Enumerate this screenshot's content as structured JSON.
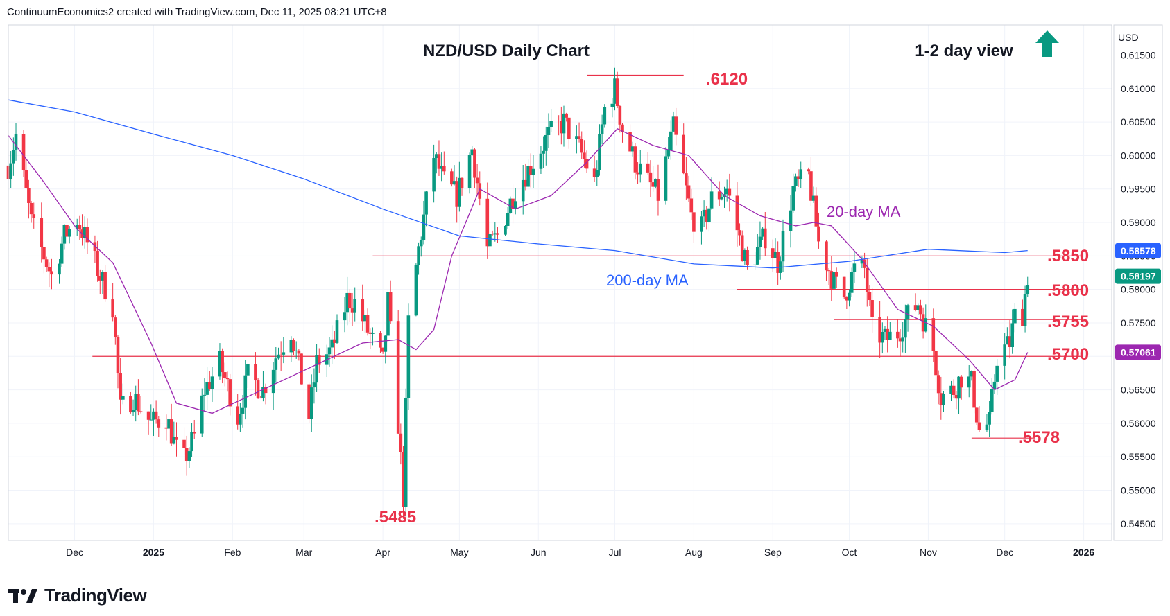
{
  "header": {
    "attribution": "ContinuumEconomics2 created with TradingView.com, Dec 11, 2025 08:21 UTC+8"
  },
  "brand": {
    "name": "TradingView",
    "icon": "tradingview-logo-icon"
  },
  "chart_data": {
    "type": "candlestick",
    "title": "NZD/USD Daily Chart",
    "view_label": "1-2 day view",
    "view_direction": "up",
    "currency_label": "USD",
    "ylim": [
      0.5425,
      0.6195
    ],
    "y_ticks": [
      0.615,
      0.61,
      0.605,
      0.6,
      0.595,
      0.59,
      0.585,
      0.58,
      0.575,
      0.57,
      0.565,
      0.56,
      0.555,
      0.55,
      0.545
    ],
    "y_tick_labels": [
      "0.61500",
      "0.61000",
      "0.60500",
      "0.60000",
      "0.59500",
      "0.59000",
      "0.58500",
      "0.58000",
      "0.57500",
      "0.57000",
      "0.56500",
      "0.56000",
      "0.55500",
      "0.55000",
      "0.54500"
    ],
    "x_range": [
      "2024-11-05",
      "2026-01-12"
    ],
    "x_ticks": [
      {
        "date": "2024-12-01",
        "label": "Dec"
      },
      {
        "date": "2025-01-01",
        "label": "2025"
      },
      {
        "date": "2025-02-01",
        "label": "Feb"
      },
      {
        "date": "2025-03-01",
        "label": "Mar"
      },
      {
        "date": "2025-04-01",
        "label": "Apr"
      },
      {
        "date": "2025-05-01",
        "label": "May"
      },
      {
        "date": "2025-06-01",
        "label": "Jun"
      },
      {
        "date": "2025-07-01",
        "label": "Jul"
      },
      {
        "date": "2025-08-01",
        "label": "Aug"
      },
      {
        "date": "2025-09-01",
        "label": "Sep"
      },
      {
        "date": "2025-10-01",
        "label": "Oct"
      },
      {
        "date": "2025-11-01",
        "label": "Nov"
      },
      {
        "date": "2025-12-01",
        "label": "Dec"
      },
      {
        "date": "2026-01-01",
        "label": "2026"
      }
    ],
    "series": [
      {
        "name": "NZD/USD",
        "close_path": [
          [
            "2024-11-05",
            0.5985
          ],
          [
            "2024-11-08",
            0.603
          ],
          [
            "2024-11-14",
            0.59
          ],
          [
            "2024-11-19",
            0.585
          ],
          [
            "2024-11-22",
            0.582
          ],
          [
            "2024-11-27",
            0.588
          ],
          [
            "2024-12-02",
            0.5905
          ],
          [
            "2024-12-06",
            0.587
          ],
          [
            "2024-12-11",
            0.582
          ],
          [
            "2024-12-16",
            0.5775
          ],
          [
            "2024-12-19",
            0.562
          ],
          [
            "2024-12-24",
            0.564
          ],
          [
            "2024-12-31",
            0.56
          ],
          [
            "2025-01-06",
            0.561
          ],
          [
            "2025-01-10",
            0.556
          ],
          [
            "2025-01-13",
            0.5545
          ],
          [
            "2025-01-17",
            0.558
          ],
          [
            "2025-01-21",
            0.565
          ],
          [
            "2025-01-27",
            0.569
          ],
          [
            "2025-02-03",
            0.561
          ],
          [
            "2025-02-07",
            0.567
          ],
          [
            "2025-02-13",
            0.565
          ],
          [
            "2025-02-18",
            0.57
          ],
          [
            "2025-02-24",
            0.574
          ],
          [
            "2025-03-03",
            0.561
          ],
          [
            "2025-03-06",
            0.569
          ],
          [
            "2025-03-12",
            0.571
          ],
          [
            "2025-03-18",
            0.5785
          ],
          [
            "2025-03-21",
            0.578
          ],
          [
            "2025-03-27",
            0.573
          ],
          [
            "2025-04-01",
            0.569
          ],
          [
            "2025-04-03",
            0.578
          ],
          [
            "2025-04-07",
            0.56
          ],
          [
            "2025-04-09",
            0.549
          ],
          [
            "2025-04-11",
            0.575
          ],
          [
            "2025-04-15",
            0.586
          ],
          [
            "2025-04-21",
            0.6
          ],
          [
            "2025-04-25",
            0.596
          ],
          [
            "2025-04-30",
            0.594
          ],
          [
            "2025-05-06",
            0.601
          ],
          [
            "2025-05-12",
            0.586
          ],
          [
            "2025-05-16",
            0.588
          ],
          [
            "2025-05-23",
            0.595
          ],
          [
            "2025-05-30",
            0.599
          ],
          [
            "2025-06-05",
            0.603
          ],
          [
            "2025-06-11",
            0.605
          ],
          [
            "2025-06-17",
            0.601
          ],
          [
            "2025-06-23",
            0.596
          ],
          [
            "2025-06-27",
            0.607
          ],
          [
            "2025-07-01",
            0.61
          ],
          [
            "2025-07-04",
            0.604
          ],
          [
            "2025-07-09",
            0.599
          ],
          [
            "2025-07-14",
            0.596
          ],
          [
            "2025-07-18",
            0.594
          ],
          [
            "2025-07-24",
            0.604
          ],
          [
            "2025-07-31",
            0.591
          ],
          [
            "2025-08-04",
            0.589
          ],
          [
            "2025-08-08",
            0.5935
          ],
          [
            "2025-08-14",
            0.595
          ],
          [
            "2025-08-20",
            0.586
          ],
          [
            "2025-08-22",
            0.583
          ],
          [
            "2025-08-29",
            0.588
          ],
          [
            "2025-09-03",
            0.584
          ],
          [
            "2025-09-09",
            0.595
          ],
          [
            "2025-09-15",
            0.597
          ],
          [
            "2025-09-19",
            0.587
          ],
          [
            "2025-09-25",
            0.581
          ],
          [
            "2025-09-29",
            0.579
          ],
          [
            "2025-10-03",
            0.583
          ],
          [
            "2025-10-07",
            0.583
          ],
          [
            "2025-10-10",
            0.574
          ],
          [
            "2025-10-15",
            0.5725
          ],
          [
            "2025-10-20",
            0.5735
          ],
          [
            "2025-10-24",
            0.576
          ],
          [
            "2025-10-28",
            0.578
          ],
          [
            "2025-11-03",
            0.571
          ],
          [
            "2025-11-06",
            0.564
          ],
          [
            "2025-11-11",
            0.565
          ],
          [
            "2025-11-14",
            0.567
          ],
          [
            "2025-11-18",
            0.566
          ],
          [
            "2025-11-21",
            0.559
          ],
          [
            "2025-11-25",
            0.56
          ],
          [
            "2025-11-28",
            0.57
          ],
          [
            "2025-12-03",
            0.572
          ],
          [
            "2025-12-05",
            0.576
          ],
          [
            "2025-12-08",
            0.5765
          ],
          [
            "2025-12-10",
            0.582
          ]
        ]
      },
      {
        "name": "20-day MA",
        "color": "#9c27b0",
        "points": [
          [
            "2024-11-05",
            0.603
          ],
          [
            "2024-11-19",
            0.596
          ],
          [
            "2024-12-02",
            0.589
          ],
          [
            "2024-12-16",
            0.584
          ],
          [
            "2024-12-31",
            0.572
          ],
          [
            "2025-01-10",
            0.563
          ],
          [
            "2025-01-24",
            0.5615
          ],
          [
            "2025-02-07",
            0.564
          ],
          [
            "2025-02-24",
            0.567
          ],
          [
            "2025-03-10",
            0.5695
          ],
          [
            "2025-03-24",
            0.572
          ],
          [
            "2025-04-07",
            0.5725
          ],
          [
            "2025-04-14",
            0.571
          ],
          [
            "2025-04-21",
            0.574
          ],
          [
            "2025-04-28",
            0.585
          ],
          [
            "2025-05-09",
            0.595
          ],
          [
            "2025-05-23",
            0.592
          ],
          [
            "2025-06-06",
            0.594
          ],
          [
            "2025-06-20",
            0.599
          ],
          [
            "2025-07-02",
            0.604
          ],
          [
            "2025-07-16",
            0.6015
          ],
          [
            "2025-07-30",
            0.6
          ],
          [
            "2025-08-13",
            0.594
          ],
          [
            "2025-08-27",
            0.591
          ],
          [
            "2025-09-10",
            0.5895
          ],
          [
            "2025-09-17",
            0.59
          ],
          [
            "2025-09-24",
            0.5895
          ],
          [
            "2025-10-06",
            0.5845
          ],
          [
            "2025-10-20",
            0.577
          ],
          [
            "2025-11-03",
            0.5745
          ],
          [
            "2025-11-17",
            0.5695
          ],
          [
            "2025-11-27",
            0.565
          ],
          [
            "2025-12-05",
            0.5665
          ],
          [
            "2025-12-10",
            0.5706
          ]
        ]
      },
      {
        "name": "200-day MA",
        "color": "#2962ff",
        "points": [
          [
            "2024-11-05",
            0.6083
          ],
          [
            "2024-12-01",
            0.6065
          ],
          [
            "2025-01-01",
            0.6032
          ],
          [
            "2025-02-01",
            0.6
          ],
          [
            "2025-03-01",
            0.5965
          ],
          [
            "2025-04-01",
            0.592
          ],
          [
            "2025-05-01",
            0.588
          ],
          [
            "2025-06-01",
            0.5868
          ],
          [
            "2025-07-01",
            0.5858
          ],
          [
            "2025-08-01",
            0.5838
          ],
          [
            "2025-09-01",
            0.5832
          ],
          [
            "2025-10-01",
            0.5842
          ],
          [
            "2025-11-01",
            0.586
          ],
          [
            "2025-12-01",
            0.5855
          ],
          [
            "2025-12-10",
            0.5858
          ]
        ]
      }
    ],
    "levels": [
      {
        "label": ".6120",
        "value": 0.612
      },
      {
        "label": ".5850",
        "value": 0.585
      },
      {
        "label": ".5800",
        "value": 0.58
      },
      {
        "label": ".5755",
        "value": 0.5755
      },
      {
        "label": ".5700",
        "value": 0.57
      },
      {
        "label": ".5578",
        "value": 0.5578
      },
      {
        "label": ".5485",
        "value": 0.5485
      }
    ],
    "annotations": [
      {
        "text": "20-day MA",
        "color": "#9c27b0"
      },
      {
        "text": "200-day MA",
        "color": "#2962ff"
      }
    ],
    "price_tags": [
      {
        "label": "0.58578",
        "color": "#2962ff"
      },
      {
        "label": "0.58197",
        "color": "#089981"
      },
      {
        "label": "0.57061",
        "color": "#9c27b0"
      }
    ],
    "colors": {
      "up": "#089981",
      "down": "#f23645",
      "level_line": "#e9314a",
      "grid": "#f0f3fa",
      "arrow": "#089981"
    },
    "grid": true
  }
}
